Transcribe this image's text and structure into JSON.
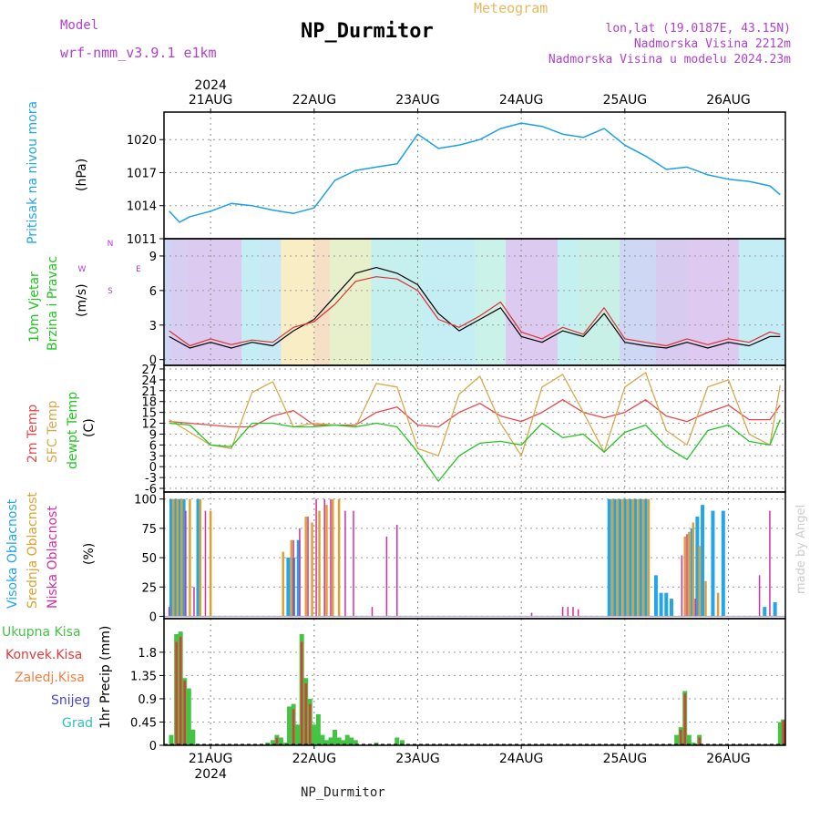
{
  "header": {
    "model_label": "Model",
    "model_name": "wrf-nmm_v3.9.1 e1km",
    "meteogram": "Meteogram",
    "station": "NP_Durmitor",
    "lonlat": "lon,lat (19.0187E, 43.15N)",
    "elevation": "Nadmorska Visina 2212m",
    "model_elevation": "Nadmorska Visina u modelu 2024.23m",
    "footer_station": "NP_Durmitor",
    "watermark": "made by Angel"
  },
  "colors": {
    "pressure": "#1aa0e6",
    "temp2m": "#e84848",
    "sfc_temp": "#d9a84a",
    "dewpoint": "#22c522",
    "high_cloud": "#22a6e8",
    "mid_cloud": "#e0a030",
    "low_cloud": "#d030a0",
    "total_rain": "#44c444",
    "conv_rain": "#e03a3a",
    "frozen": "#f08040",
    "snow": "#4444dd",
    "hail": "#30c0c0"
  },
  "chart_data": [
    {
      "type": "line",
      "panel": "pressure",
      "ylabel_left": "Pritisak na nivou mora",
      "ylabel_unit": "(hPa)",
      "ylim": [
        1011,
        1022.5
      ],
      "yticks": [
        1011,
        1014,
        1017,
        1020
      ],
      "top_year": "2024",
      "top_dates": [
        "21AUG",
        "22AUG",
        "23AUG",
        "24AUG",
        "25AUG",
        "26AUG"
      ],
      "x": [
        0.6,
        0.7,
        0.8,
        1.0,
        1.2,
        1.4,
        1.6,
        1.8,
        2.0,
        2.2,
        2.4,
        2.6,
        2.8,
        3.0,
        3.2,
        3.4,
        3.6,
        3.8,
        4.0,
        4.2,
        4.4,
        4.6,
        4.8,
        5.0,
        5.2,
        5.4,
        5.6,
        5.8,
        6.0,
        6.2,
        6.4,
        6.5
      ],
      "values": [
        1013.5,
        1012.5,
        1013.0,
        1013.5,
        1014.2,
        1014.0,
        1013.6,
        1013.3,
        1013.8,
        1016.3,
        1017.2,
        1017.5,
        1017.8,
        1020.5,
        1019.2,
        1019.5,
        1020.0,
        1021.0,
        1021.5,
        1021.2,
        1020.5,
        1020.2,
        1021.0,
        1019.5,
        1018.5,
        1017.3,
        1017.5,
        1016.8,
        1016.4,
        1016.2,
        1015.8,
        1015.0
      ]
    },
    {
      "type": "line",
      "panel": "wind",
      "ylabel_left": "10m Vjetar",
      "ylabel_left2": "Brzina i Pravac",
      "ylabel_unit": "(m/s)",
      "compass": [
        "N",
        "E",
        "S",
        "W"
      ],
      "ylim": [
        -0.5,
        10.5
      ],
      "yticks": [
        0,
        3,
        6,
        9
      ],
      "x": [
        0.6,
        0.8,
        1.0,
        1.2,
        1.4,
        1.6,
        1.8,
        2.0,
        2.2,
        2.4,
        2.6,
        2.8,
        3.0,
        3.2,
        3.4,
        3.6,
        3.8,
        4.0,
        4.2,
        4.4,
        4.6,
        4.8,
        5.0,
        5.2,
        5.4,
        5.6,
        5.8,
        6.0,
        6.2,
        6.4,
        6.5
      ],
      "series": [
        {
          "values": [
            2.0,
            1.0,
            1.5,
            1.0,
            1.5,
            1.2,
            2.5,
            3.5,
            5.5,
            7.5,
            8.0,
            7.5,
            6.5,
            4.0,
            2.5,
            3.5,
            4.5,
            2.0,
            1.5,
            2.5,
            2.0,
            4.0,
            1.5,
            1.2,
            1.0,
            1.5,
            1.0,
            1.5,
            1.2,
            2.0,
            2.0
          ]
        },
        {
          "values": [
            2.5,
            1.2,
            1.8,
            1.3,
            1.7,
            1.5,
            2.8,
            3.3,
            4.8,
            6.8,
            7.2,
            7.0,
            6.0,
            3.5,
            2.8,
            3.8,
            5.0,
            2.4,
            1.8,
            2.8,
            2.2,
            4.5,
            1.8,
            1.5,
            1.2,
            1.8,
            1.3,
            1.8,
            1.5,
            2.4,
            2.2
          ]
        }
      ]
    },
    {
      "type": "line",
      "panel": "temperature",
      "ylabel_left": "2m Temp",
      "ylabel_left2": "SFC Temp",
      "ylabel_left3": "dewpt Temp",
      "ylabel_unit": "(C)",
      "ylim": [
        -7,
        28
      ],
      "yticks": [
        -6,
        -3,
        0,
        3,
        6,
        9,
        12,
        15,
        18,
        21,
        24,
        27
      ],
      "x": [
        0.6,
        0.8,
        1.0,
        1.2,
        1.4,
        1.6,
        1.8,
        2.0,
        2.2,
        2.4,
        2.6,
        2.8,
        3.0,
        3.2,
        3.4,
        3.6,
        3.8,
        4.0,
        4.2,
        4.4,
        4.6,
        4.8,
        5.0,
        5.2,
        5.4,
        5.6,
        5.8,
        6.0,
        6.2,
        6.4,
        6.5
      ],
      "series": [
        {
          "name": "2m Temp",
          "values": [
            12.5,
            12.0,
            11.5,
            11.0,
            11.0,
            14.0,
            15.5,
            11.5,
            11.5,
            11.5,
            15.0,
            16.5,
            11.5,
            11.0,
            15.0,
            17.5,
            14.0,
            12.5,
            15.0,
            18.5,
            15.0,
            13.5,
            15.0,
            18.5,
            14.0,
            12.5,
            15.0,
            17.0,
            13.0,
            13.0,
            17.0
          ]
        },
        {
          "name": "SFC Temp",
          "values": [
            13.0,
            9.5,
            6.0,
            5.0,
            20.5,
            23.5,
            11.0,
            12.0,
            11.5,
            11.0,
            23.0,
            22.0,
            5.0,
            3.0,
            20.0,
            25.0,
            12.0,
            3.0,
            22.0,
            25.5,
            15.0,
            4.0,
            22.0,
            26.0,
            10.0,
            6.0,
            22.0,
            24.0,
            9.0,
            6.0,
            22.5
          ]
        },
        {
          "name": "dewpt Temp",
          "values": [
            12.0,
            11.5,
            6.0,
            5.5,
            12.0,
            12.0,
            11.0,
            11.0,
            11.5,
            11.0,
            12.0,
            11.0,
            4.0,
            -4.0,
            3.0,
            6.5,
            7.0,
            6.0,
            12.0,
            8.0,
            9.0,
            4.0,
            9.5,
            11.5,
            5.5,
            2.0,
            10.0,
            11.5,
            7.0,
            6.0,
            13.0
          ]
        }
      ]
    },
    {
      "type": "bar",
      "panel": "clouds",
      "ylabel_left": "Visoka Oblacnost",
      "ylabel_left2": "Srednja Oblacnost",
      "ylabel_left3": "Niska Oblacnost",
      "ylabel_unit": "(%)",
      "ylim": [
        -2,
        106
      ],
      "yticks": [
        0,
        25,
        50,
        75,
        100
      ],
      "series": [
        {
          "name": "Visoka Oblacnost",
          "x": [
            0.62,
            0.66,
            0.7,
            0.74,
            0.88,
            1.75,
            1.8,
            1.85,
            4.85,
            4.9,
            4.95,
            5.0,
            5.05,
            5.1,
            5.15,
            5.2,
            5.3,
            5.35,
            5.4,
            5.45,
            5.65,
            5.7,
            5.75,
            5.85,
            5.95,
            6.35,
            6.45
          ],
          "values": [
            100,
            100,
            100,
            100,
            100,
            50,
            50,
            65,
            100,
            100,
            100,
            100,
            100,
            100,
            100,
            100,
            35,
            20,
            20,
            15,
            75,
            85,
            95,
            90,
            90,
            8,
            12
          ]
        },
        {
          "name": "Srednja Oblacnost",
          "x": [
            0.64,
            0.68,
            0.72,
            0.8,
            0.9,
            1.0,
            1.7,
            1.78,
            1.92,
            1.98,
            2.05,
            2.12,
            2.18,
            2.24,
            4.88,
            4.93,
            4.98,
            5.03,
            5.08,
            5.13,
            5.18,
            5.23,
            5.58,
            5.62,
            5.66,
            5.72,
            5.78,
            5.9
          ],
          "values": [
            100,
            100,
            100,
            100,
            100,
            90,
            55,
            65,
            85,
            80,
            90,
            95,
            100,
            100,
            100,
            100,
            100,
            100,
            100,
            100,
            100,
            100,
            68,
            72,
            80,
            60,
            30,
            20
          ]
        },
        {
          "name": "Niska Oblacnost",
          "x": [
            0.6,
            0.76,
            0.84,
            0.95,
            1.8,
            1.86,
            1.94,
            2.02,
            2.1,
            2.16,
            2.3,
            2.38,
            2.56,
            2.7,
            2.8,
            4.1,
            4.4,
            4.45,
            4.5,
            4.55,
            5.55,
            5.6,
            5.68,
            6.3,
            6.4
          ],
          "values": [
            8,
            90,
            25,
            90,
            65,
            75,
            85,
            100,
            100,
            100,
            90,
            90,
            8,
            68,
            78,
            3,
            8,
            8,
            8,
            6,
            52,
            70,
            15,
            35,
            90
          ]
        }
      ]
    },
    {
      "type": "bar",
      "panel": "precipitation",
      "legend": [
        "Ukupna Kisa",
        "Konvek.Kisa",
        "Zaledj.Kisa",
        "Snijeg",
        "Grad"
      ],
      "ylabel_unit": "1hr Precip (mm)",
      "ylim": [
        0,
        2.45
      ],
      "yticks": [
        0,
        0.45,
        0.9,
        1.35,
        1.8
      ],
      "bottom_year": "2024",
      "bottom_dates": [
        "21AUG",
        "22AUG",
        "23AUG",
        "24AUG",
        "25AUG",
        "26AUG"
      ],
      "series": [
        {
          "name": "Ukupna Kisa",
          "x": [
            0.62,
            0.67,
            0.71,
            0.75,
            0.79,
            0.83,
            1.55,
            1.6,
            1.64,
            1.68,
            1.72,
            1.76,
            1.8,
            1.84,
            1.88,
            1.92,
            1.96,
            2.0,
            2.04,
            2.08,
            2.12,
            2.16,
            2.2,
            2.24,
            2.28,
            2.32,
            2.36,
            2.4,
            2.6,
            2.8,
            2.85,
            5.5,
            5.54,
            5.58,
            5.62,
            5.66,
            5.72,
            6.5,
            6.53
          ],
          "values": [
            0.2,
            2.15,
            2.2,
            1.3,
            1.1,
            0.3,
            0.05,
            0.1,
            0.2,
            0.15,
            0.05,
            0.75,
            0.8,
            0.4,
            2.15,
            1.3,
            0.9,
            0.4,
            0.6,
            0.2,
            0.1,
            0.15,
            0.3,
            0.15,
            0.1,
            0.2,
            0.15,
            0.1,
            0.05,
            0.15,
            0.1,
            0.2,
            0.35,
            1.05,
            0.2,
            0.05,
            0.2,
            0.45,
            0.5
          ]
        },
        {
          "name": "Konvek.Kisa",
          "x": [
            0.67,
            0.71,
            0.75,
            1.64,
            1.8,
            1.88,
            1.92,
            1.96,
            5.54,
            5.58,
            5.72,
            6.53
          ],
          "values": [
            2.0,
            2.1,
            1.25,
            0.15,
            0.7,
            2.0,
            1.2,
            0.8,
            0.3,
            1.0,
            0.15,
            0.48
          ]
        }
      ]
    }
  ]
}
